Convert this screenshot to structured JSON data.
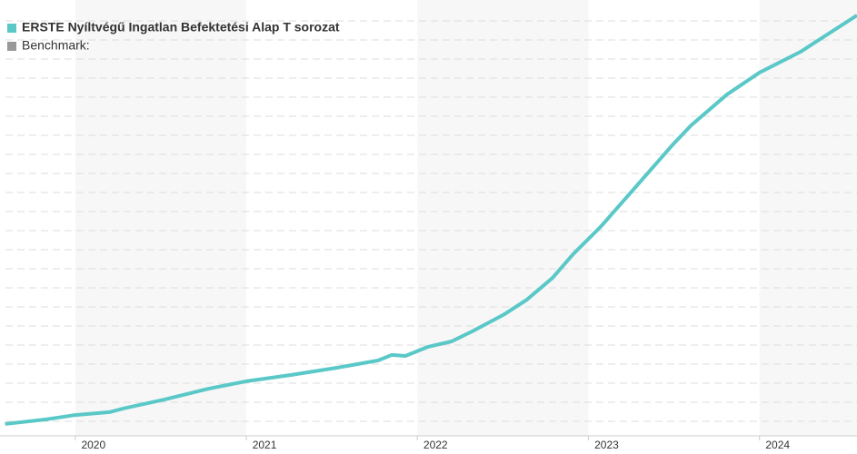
{
  "chart_data": {
    "type": "line",
    "x": [
      2019.59,
      2019.83,
      2020.0,
      2020.2,
      2020.28,
      2020.52,
      2020.78,
      2021.0,
      2021.26,
      2021.53,
      2021.77,
      2021.85,
      2021.93,
      2022.06,
      2022.2,
      2022.33,
      2022.51,
      2022.64,
      2022.79,
      2022.91,
      2023.07,
      2023.28,
      2023.49,
      2023.6,
      2023.81,
      2024.0,
      2024.24,
      2024.57
    ],
    "series": [
      {
        "name": "ERSTE Nyíltvégű Ingatlan Befektetési Alap T sorozat",
        "color": "#5bc8c8",
        "values": [
          0.86,
          1.1,
          1.33,
          1.48,
          1.67,
          2.14,
          2.71,
          3.1,
          3.43,
          3.81,
          4.19,
          4.48,
          4.43,
          4.9,
          5.19,
          5.76,
          6.62,
          7.38,
          8.52,
          9.76,
          11.19,
          13.33,
          15.48,
          16.52,
          18.14,
          19.29,
          20.38,
          22.29
        ]
      }
    ],
    "benchmark": {
      "name": "Benchmark:",
      "color": "#999999"
    },
    "xlim": [
      2019.56,
      2024.57
    ],
    "xticks": [
      2020,
      2021,
      2022,
      2023,
      2024
    ],
    "ylim": [
      0,
      22.5
    ],
    "yticks": [
      1,
      2,
      3,
      4,
      5,
      6,
      7,
      8,
      9,
      10,
      11,
      12,
      13,
      14,
      15,
      16,
      17,
      18,
      19,
      20,
      21,
      22
    ],
    "grid": true
  }
}
